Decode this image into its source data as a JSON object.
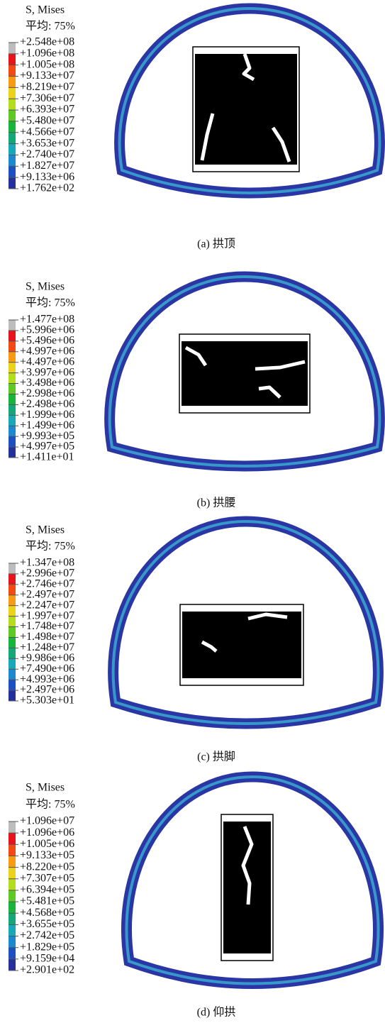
{
  "panels": [
    {
      "legend_title": "S, Mises",
      "legend_subtitle": "平均: 75%",
      "legend_labels": [
        "+2.548e+08",
        "+1.096e+08",
        "+1.005e+08",
        "+9.133e+07",
        "+8.219e+07",
        "+7.306e+07",
        "+6.393e+07",
        "+5.480e+07",
        "+4.566e+07",
        "+3.653e+07",
        "+2.740e+07",
        "+1.827e+07",
        "+9.133e+06",
        "+1.762e+02"
      ],
      "caption": "(a) 拱顶"
    },
    {
      "legend_title": "S, Mises",
      "legend_subtitle": "平均: 75%",
      "legend_labels": [
        "+1.477e+08",
        "+5.996e+06",
        "+5.496e+06",
        "+4.997e+06",
        "+4.497e+06",
        "+3.997e+06",
        "+3.498e+06",
        "+2.998e+06",
        "+2.498e+06",
        "+1.999e+06",
        "+1.499e+06",
        "+9.993e+05",
        "+4.997e+05",
        "+1.411e+01"
      ],
      "caption": "(b) 拱腰"
    },
    {
      "legend_title": "S, Mises",
      "legend_subtitle": "平均: 75%",
      "legend_labels": [
        "+1.347e+08",
        "+2.996e+07",
        "+2.746e+07",
        "+2.497e+07",
        "+2.247e+07",
        "+1.997e+07",
        "+1.748e+07",
        "+1.498e+07",
        "+1.248e+07",
        "+9.986e+06",
        "+7.490e+06",
        "+4.993e+06",
        "+2.497e+06",
        "+5.303e+01"
      ],
      "caption": "(c) 拱脚"
    },
    {
      "legend_title": "S, Mises",
      "legend_subtitle": "平均: 75%",
      "legend_labels": [
        "+1.096e+07",
        "+1.096e+06",
        "+1.005e+06",
        "+9.133e+05",
        "+8.220e+05",
        "+7.307e+05",
        "+6.394e+05",
        "+5.481e+05",
        "+4.568e+05",
        "+3.655e+05",
        "+2.742e+05",
        "+1.829e+05",
        "+9.159e+04",
        "+2.901e+02"
      ],
      "caption": "(d) 仰拱"
    }
  ]
}
